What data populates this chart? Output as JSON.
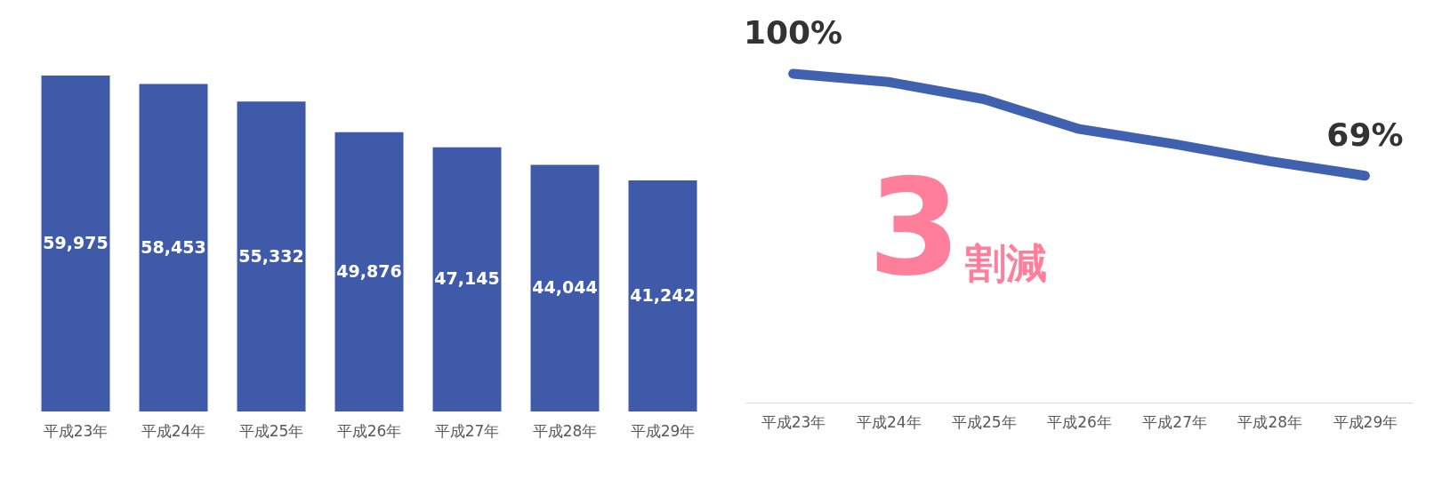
{
  "chart_data": [
    {
      "type": "bar",
      "categories": [
        "平成23年",
        "平成24年",
        "平成25年",
        "平成26年",
        "平成27年",
        "平成28年",
        "平成29年"
      ],
      "values": [
        59975,
        58453,
        55332,
        49876,
        47145,
        44044,
        41242
      ],
      "value_labels": [
        "59,975",
        "58,453",
        "55,332",
        "49,876",
        "47,145",
        "44,044",
        "41,242"
      ],
      "color": "#3f5aa9"
    },
    {
      "type": "line",
      "categories": [
        "平成23年",
        "平成24年",
        "平成25年",
        "平成26年",
        "平成27年",
        "平成28年",
        "平成29年"
      ],
      "series": [
        {
          "color": "#4060b0",
          "values": [
            100,
            97.5,
            92.3,
            83.2,
            78.6,
            73.4,
            69
          ],
          "value_labels": [
            "100%",
            null,
            null,
            null,
            null,
            null,
            "69%"
          ]
        }
      ],
      "annotations": [
        "3",
        "割減"
      ]
    }
  ]
}
